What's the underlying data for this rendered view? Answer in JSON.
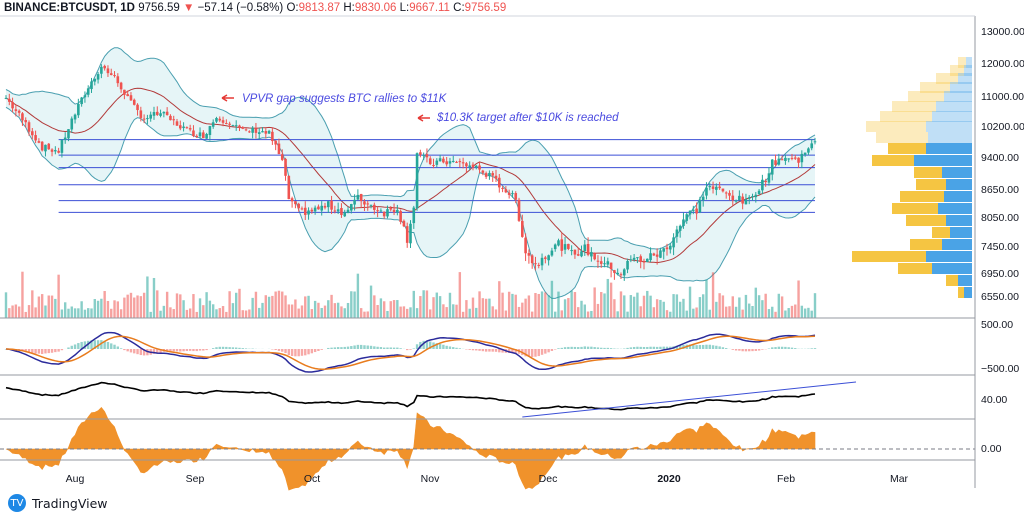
{
  "header": {
    "symbol": "BINANCE:BTCUSDT, 1D",
    "last": "9756.59",
    "arrow": "▼",
    "change": "−57.14 (−0.58%)",
    "o_label": "O:",
    "o": "9813.87",
    "h_label": "H:",
    "h": "9830.06",
    "l_label": "L:",
    "l": "9667.11",
    "c_label": "C:",
    "c": "9756.59"
  },
  "brand": {
    "name": "TradingView",
    "icon": "tradingview-logo-icon"
  },
  "colors": {
    "up": "#26a69a",
    "down": "#ef5350",
    "bb_line": "#4a9fb0",
    "bb_fill": "#d6eef2",
    "ma": "#b23a3a",
    "hline": "#3b4fd6",
    "vp_up": "#f5c542",
    "vp_down": "#4aa3e6",
    "macd": "#2b2b9b",
    "signal": "#e87c1e",
    "rsi": "#000000",
    "osc": "#f0922b"
  },
  "chart_data": {
    "type": "candlestick",
    "x_ticks": [
      "Aug",
      "Sep",
      "Oct",
      "Nov",
      "Dec",
      "2020",
      "Feb",
      "Mar"
    ],
    "price_ticks": [
      "13000.00",
      "12000.00",
      "11000.00",
      "10200.00",
      "9400.00",
      "8650.00",
      "8050.00",
      "7450.00",
      "6950.00",
      "6550.00"
    ],
    "price_levels": [
      13000,
      12000,
      11000,
      10200,
      9400,
      8650,
      8050,
      7450,
      6950,
      6550
    ],
    "horizontal_levels": [
      9850,
      9450,
      9150,
      8750,
      8400,
      8150
    ],
    "close_path": [
      [
        0,
        10950
      ],
      [
        6,
        10250
      ],
      [
        11,
        9650
      ],
      [
        16,
        9550
      ],
      [
        20,
        10350
      ],
      [
        25,
        11250
      ],
      [
        29,
        11900
      ],
      [
        33,
        11550
      ],
      [
        38,
        10800
      ],
      [
        42,
        10400
      ],
      [
        47,
        10550
      ],
      [
        51,
        10300
      ],
      [
        56,
        10050
      ],
      [
        60,
        9950
      ],
      [
        64,
        10450
      ],
      [
        68,
        10300
      ],
      [
        72,
        10050
      ],
      [
        76,
        10100
      ],
      [
        80,
        10000
      ],
      [
        84,
        9300
      ],
      [
        86,
        8450
      ],
      [
        89,
        8150
      ],
      [
        94,
        8200
      ],
      [
        98,
        8300
      ],
      [
        103,
        8150
      ],
      [
        107,
        8450
      ],
      [
        111,
        8300
      ],
      [
        115,
        8150
      ],
      [
        119,
        8250
      ],
      [
        122,
        7600
      ],
      [
        124,
        8300
      ],
      [
        125,
        9500
      ],
      [
        129,
        9250
      ],
      [
        133,
        9300
      ],
      [
        138,
        9250
      ],
      [
        143,
        9150
      ],
      [
        147,
        8950
      ],
      [
        151,
        8700
      ],
      [
        155,
        8400
      ],
      [
        158,
        7350
      ],
      [
        161,
        7100
      ],
      [
        164,
        7300
      ],
      [
        168,
        7500
      ],
      [
        172,
        7300
      ],
      [
        176,
        7400
      ],
      [
        180,
        7200
      ],
      [
        184,
        7050
      ],
      [
        187,
        6950
      ],
      [
        190,
        7200
      ],
      [
        194,
        7200
      ],
      [
        198,
        7300
      ],
      [
        201,
        7400
      ],
      [
        204,
        7800
      ],
      [
        207,
        8100
      ],
      [
        210,
        8200
      ],
      [
        213,
        8700
      ],
      [
        216,
        8650
      ],
      [
        219,
        8550
      ],
      [
        222,
        8450
      ],
      [
        225,
        8350
      ],
      [
        228,
        8600
      ],
      [
        231,
        8900
      ],
      [
        233,
        9250
      ],
      [
        236,
        9400
      ],
      [
        239,
        9350
      ],
      [
        241,
        9300
      ],
      [
        243,
        9600
      ],
      [
        246,
        9756.59
      ]
    ],
    "macd_ticks": [
      "500.00",
      "−500.00"
    ],
    "rsi_ticks": [
      "40.00"
    ],
    "osc_ticks": [
      "0.00"
    ],
    "annotations": [
      {
        "text": "VPVR gap suggests BTC rallies to $11K"
      },
      {
        "text": "$10.3K target after $10K is reached"
      }
    ]
  }
}
